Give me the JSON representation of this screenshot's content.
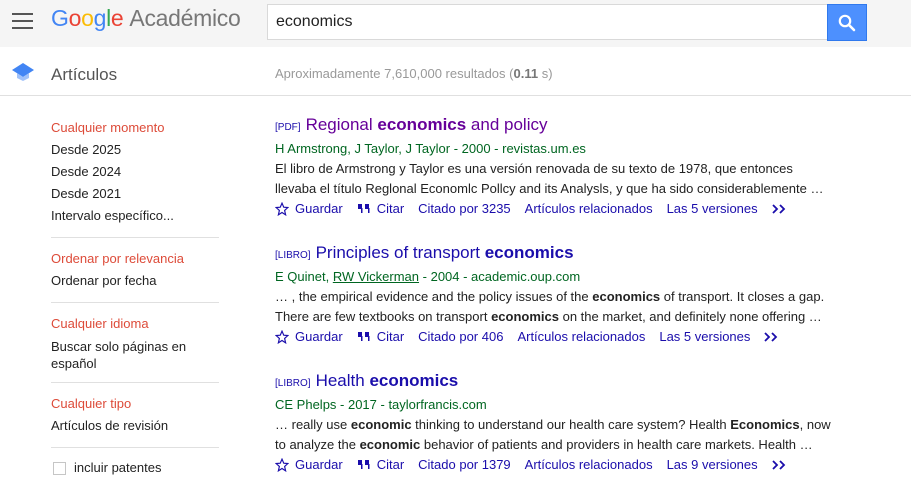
{
  "header": {
    "logo_letters": [
      "G",
      "o",
      "o",
      "g",
      "l",
      "e"
    ],
    "logo_product": "Académico",
    "search_value": "economics"
  },
  "subheader": {
    "section": "Artículos",
    "count_prefix": "Aproximadamente 7,610,000 resultados (",
    "count_time": "0.11",
    "count_suffix": " s)"
  },
  "sidebar": {
    "time": [
      "Cualquier momento",
      "Desde 2025",
      "Desde 2024",
      "Desde 2021",
      "Intervalo específico..."
    ],
    "sort": [
      "Ordenar por relevancia",
      "Ordenar por fecha"
    ],
    "language": [
      "Cualquier idioma",
      "Buscar solo páginas en español"
    ],
    "type": [
      "Cualquier tipo",
      "Artículos de revisión"
    ],
    "patents_label": "incluir patentes"
  },
  "results": [
    {
      "type": "[PDF]",
      "title_pre": "Regional ",
      "title_bold": "economics",
      "title_post": " and policy",
      "authors_a": "H Armstrong, J Taylor, J Taylor",
      "authors_link": "",
      "authors_b": " - 2000 - revistas.um.es",
      "line1": [
        {
          "t": "El libro de Armstrong y Taylor es una versión renovada de su texto de 1978, que entonces",
          "b": false
        }
      ],
      "line2": [
        {
          "t": "llevaba el título Reglonal Economlc Pollcy and its Analysls, y que ha sido considerablemente …",
          "b": false
        }
      ],
      "save": "Guardar",
      "cite": "Citar",
      "cited_by": "Citado por 3235",
      "related": "Artículos relacionados",
      "versions": "Las 5 versiones"
    },
    {
      "type": "[LIBRO]",
      "title_pre": "Principles of transport ",
      "title_bold": "economics",
      "title_post": "",
      "authors_a": "E Quinet, ",
      "authors_link": "RW Vickerman",
      "authors_b": " - 2004 - academic.oup.com",
      "line1": [
        {
          "t": "… , the empirical evidence and the policy issues of the ",
          "b": false
        },
        {
          "t": "economics",
          "b": true
        },
        {
          "t": " of transport. It closes a gap.",
          "b": false
        }
      ],
      "line2": [
        {
          "t": "There are few textbooks on transport ",
          "b": false
        },
        {
          "t": "economics",
          "b": true
        },
        {
          "t": " on the market, and definitely none offering …",
          "b": false
        }
      ],
      "save": "Guardar",
      "cite": "Citar",
      "cited_by": "Citado por 406",
      "related": "Artículos relacionados",
      "versions": "Las 5 versiones"
    },
    {
      "type": "[LIBRO]",
      "title_pre": "Health ",
      "title_bold": "economics",
      "title_post": "",
      "authors_a": "CE Phelps",
      "authors_link": "",
      "authors_b": " - 2017 - taylorfrancis.com",
      "line1": [
        {
          "t": "… really use ",
          "b": false
        },
        {
          "t": "economic",
          "b": true
        },
        {
          "t": " thinking to understand our health care system? Health ",
          "b": false
        },
        {
          "t": "Economics",
          "b": true
        },
        {
          "t": ", now",
          "b": false
        }
      ],
      "line2": [
        {
          "t": "to analyze the ",
          "b": false
        },
        {
          "t": "economic",
          "b": true
        },
        {
          "t": " behavior of patients and providers in health care markets. Health …",
          "b": false
        }
      ],
      "save": "Guardar",
      "cite": "Citar",
      "cited_by": "Citado por 1379",
      "related": "Artículos relacionados",
      "versions": "Las 9 versiones"
    }
  ]
}
